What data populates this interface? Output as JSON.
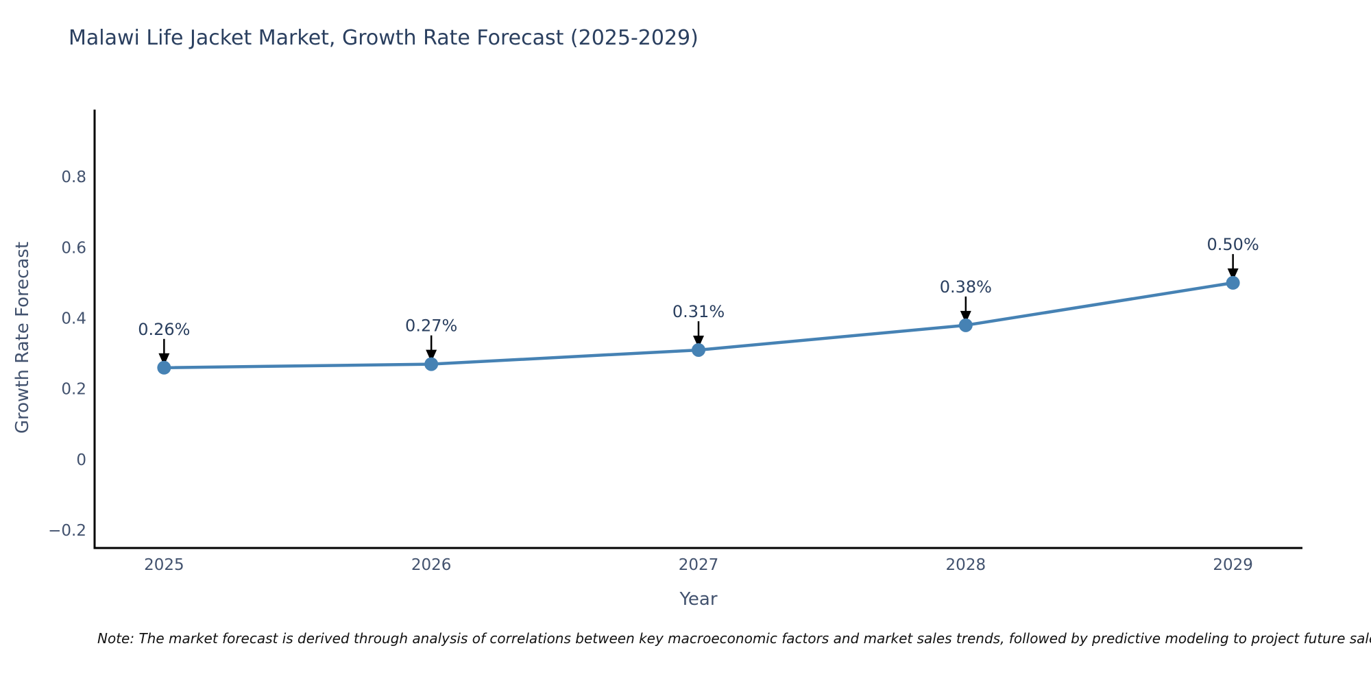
{
  "note": "Note: The market forecast is derived through analysis of correlations between key macroeconomic factors and market sales trends, followed by predictive modeling to project future sales.",
  "chart_data": {
    "type": "line",
    "title": "Malawi Life Jacket Market, Growth Rate Forecast (2025-2029)",
    "xlabel": "Year",
    "ylabel": "Growth Rate Forecast",
    "x": [
      2025,
      2026,
      2027,
      2028,
      2029
    ],
    "series": [
      {
        "name": "Growth Rate Forecast",
        "values": [
          0.26,
          0.27,
          0.31,
          0.38,
          0.5
        ],
        "point_labels": [
          "0.26%",
          "0.27%",
          "0.31%",
          "0.38%",
          "0.50%"
        ]
      }
    ],
    "xticks": {
      "values": [
        2025,
        2026,
        2027,
        2028,
        2029
      ],
      "labels": [
        "2025",
        "2026",
        "2027",
        "2028",
        "2029"
      ]
    },
    "yticks": {
      "values": [
        -0.2,
        0,
        0.2,
        0.4,
        0.6,
        0.8
      ],
      "labels": [
        "−0.2",
        "0",
        "0.2",
        "0.4",
        "0.6",
        "0.8"
      ]
    },
    "xlim": [
      2024.74,
      2029.26
    ],
    "ylim": [
      -0.25,
      0.99
    ],
    "grid": false,
    "legend_position": "none",
    "marker": "circle",
    "annotation_arrow": "down",
    "colors": {
      "line": "#4682b4",
      "marker": "#4682b4",
      "arrow": "#000000",
      "title_text": "#2a3f5f",
      "axis_text": "#42526e",
      "annotation_text": "#2a3f5f",
      "spine": "#000000",
      "background": "#ffffff"
    }
  }
}
